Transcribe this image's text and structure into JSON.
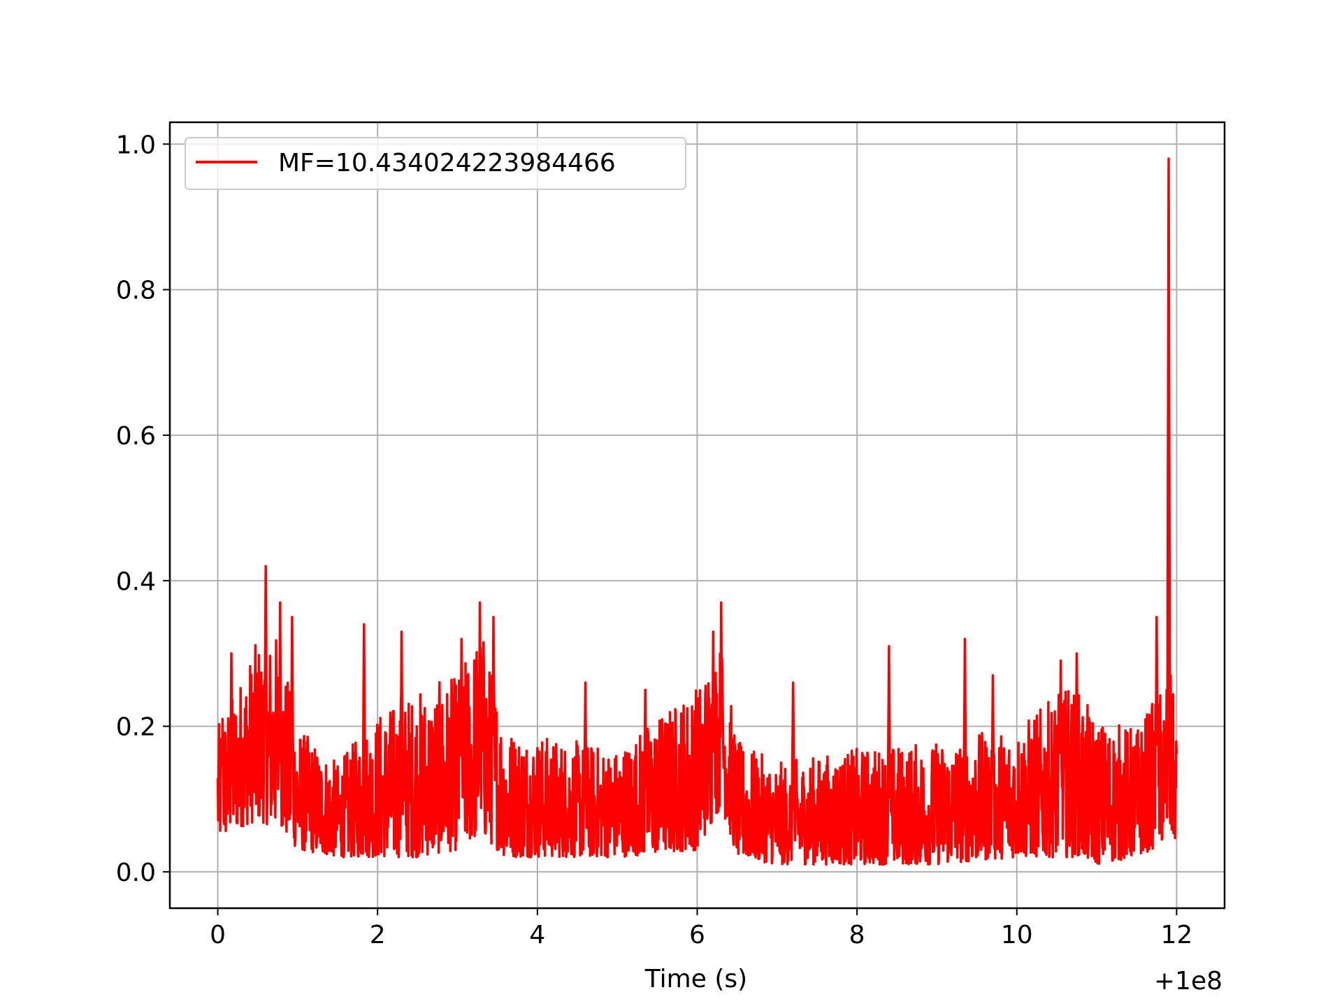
{
  "chart_data": {
    "type": "line",
    "title": "",
    "xlabel": "Time (s)",
    "ylabel": "",
    "x_offset_label": "+1e8",
    "xlim": [
      -0.6,
      12.6
    ],
    "ylim": [
      -0.05,
      1.03
    ],
    "xticks": [
      0,
      2,
      4,
      6,
      8,
      10,
      12
    ],
    "xtick_labels": [
      "0",
      "2",
      "4",
      "6",
      "8",
      "10",
      "12"
    ],
    "yticks": [
      0.0,
      0.2,
      0.4,
      0.6,
      0.8,
      1.0
    ],
    "ytick_labels": [
      "0.0",
      "0.2",
      "0.4",
      "0.6",
      "0.8",
      "1.0"
    ],
    "grid": true,
    "legend_position": "top-left",
    "series": [
      {
        "name": "MF=10.434024223984466",
        "color": "#ff0000",
        "x_range": [
          0,
          12
        ],
        "envelope": {
          "x": [
            0.0,
            0.25,
            0.5,
            0.75,
            1.0,
            1.5,
            2.0,
            2.5,
            3.0,
            3.3,
            3.6,
            4.0,
            5.0,
            6.0,
            6.3,
            6.5,
            7.0,
            8.0,
            9.0,
            10.0,
            10.7,
            11.0,
            11.5,
            11.85,
            11.9,
            12.0
          ],
          "low": [
            0.04,
            0.06,
            0.07,
            0.06,
            0.03,
            0.02,
            0.02,
            0.02,
            0.03,
            0.05,
            0.02,
            0.02,
            0.02,
            0.03,
            0.09,
            0.02,
            0.01,
            0.01,
            0.01,
            0.02,
            0.02,
            0.01,
            0.02,
            0.04,
            0.05,
            0.04
          ],
          "high": [
            0.2,
            0.26,
            0.32,
            0.33,
            0.2,
            0.15,
            0.22,
            0.25,
            0.27,
            0.34,
            0.2,
            0.19,
            0.17,
            0.26,
            0.32,
            0.18,
            0.15,
            0.17,
            0.18,
            0.2,
            0.26,
            0.21,
            0.2,
            0.26,
            0.3,
            0.2
          ]
        },
        "spikes": [
          {
            "x": 0.06,
            "y": 0.21
          },
          {
            "x": 0.17,
            "y": 0.3
          },
          {
            "x": 0.6,
            "y": 0.42
          },
          {
            "x": 0.78,
            "y": 0.37
          },
          {
            "x": 0.93,
            "y": 0.35
          },
          {
            "x": 1.83,
            "y": 0.34
          },
          {
            "x": 2.3,
            "y": 0.33
          },
          {
            "x": 3.05,
            "y": 0.32
          },
          {
            "x": 3.28,
            "y": 0.37
          },
          {
            "x": 3.45,
            "y": 0.35
          },
          {
            "x": 4.6,
            "y": 0.26
          },
          {
            "x": 5.35,
            "y": 0.25
          },
          {
            "x": 6.2,
            "y": 0.33
          },
          {
            "x": 6.3,
            "y": 0.37
          },
          {
            "x": 7.2,
            "y": 0.26
          },
          {
            "x": 8.4,
            "y": 0.31
          },
          {
            "x": 9.35,
            "y": 0.32
          },
          {
            "x": 9.7,
            "y": 0.27
          },
          {
            "x": 10.55,
            "y": 0.29
          },
          {
            "x": 10.75,
            "y": 0.3
          },
          {
            "x": 11.75,
            "y": 0.35
          },
          {
            "x": 11.9,
            "y": 0.98
          }
        ]
      }
    ]
  }
}
